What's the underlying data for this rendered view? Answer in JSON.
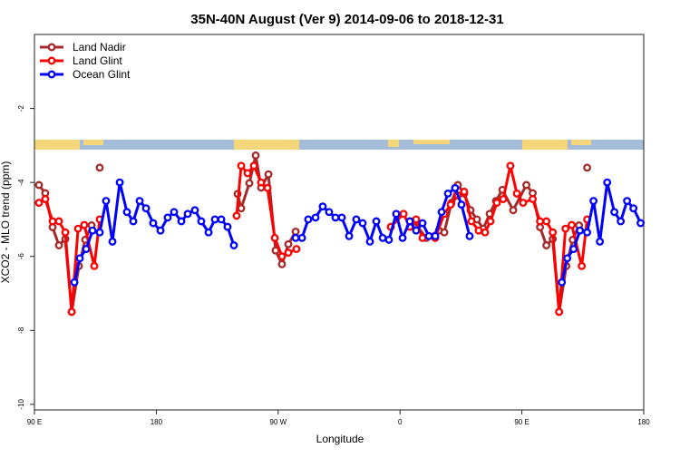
{
  "chart_data": {
    "type": "line",
    "title": "35N-40N August (Ver 9)   2014-09-06 to 2018-12-31",
    "x_label": "Longitude",
    "y_label": "XCO2 - MLO trend (ppm)",
    "legend": "upper left",
    "xlim": [
      90,
      540
    ],
    "ylim": [
      -10.15,
      0
    ],
    "xticks": [
      {
        "value": 90,
        "label": "90 E"
      },
      180,
      {
        "value": 270,
        "label": "90 W"
      },
      {
        "value": 360,
        "label": "0"
      },
      {
        "value": 450,
        "label": "90 E"
      },
      {
        "value": 540,
        "label": "180"
      }
    ],
    "yticks": [
      -10,
      -8,
      -6,
      -4,
      -2
    ],
    "series": [
      {
        "name": "Land Nadir",
        "color": "#a52a2a",
        "x": [
          93.3,
          98,
          103.4,
          108.1,
          112.8,
          117.5,
          122.8,
          127.5,
          132.2,
          135,
          138.2,
          190,
          240,
          242.7,
          248.7,
          253.4,
          257.4,
          262.8,
          268.1,
          272.8,
          277.5,
          282.9,
          330,
          369.9,
          379.3,
          388.7,
          392.7,
          398,
          402.7,
          407.4,
          412.1,
          416.8,
          421.5,
          426.2,
          430.9,
          435.6,
          443.6,
          453.3,
          458,
          463.4,
          468.1,
          472.8,
          477.5,
          482.8,
          487.5,
          492.2,
          495,
          498.2
        ],
        "values": [
          -4.07,
          -4.29,
          -5.21,
          -5.7,
          -5.53,
          -7.5,
          -6.26,
          -5.55,
          -5.16,
          null,
          -3.6,
          null,
          -4.31,
          -4.7,
          -4.02,
          -3.27,
          -4.14,
          -3.78,
          -5.84,
          -6.21,
          -5.67,
          -5.33,
          null,
          -5.05,
          -5.5,
          -5.3,
          -5.35,
          -4.55,
          -4.07,
          -4.3,
          -4.75,
          -5.0,
          -5.25,
          -4.85,
          -4.5,
          -4.2,
          -4.75,
          -4.07,
          -4.29,
          -5.21,
          -5.7,
          -5.53,
          -7.5,
          -6.26,
          -5.55,
          -5.16,
          null,
          -3.6
        ]
      },
      {
        "name": "Land Glint",
        "color": "#ff0000",
        "x": [
          93.3,
          98,
          103.4,
          108.1,
          112.8,
          117.5,
          122.2,
          126.8,
          134.2,
          138.2,
          190,
          239.3,
          242.7,
          247.4,
          252.1,
          257.4,
          262.1,
          267.5,
          272.8,
          277.5,
          283.5,
          320,
          353.2,
          362.6,
          367.2,
          371.9,
          376.6,
          386,
          392.7,
          397.4,
          402.7,
          407.4,
          412.7,
          418.1,
          422.8,
          426.8,
          431.5,
          436.2,
          441.5,
          446.3,
          450.9,
          458,
          463.4,
          468.1,
          472.8,
          477.5,
          482.2,
          486.8,
          494.2,
          498.2
        ],
        "values": [
          -4.55,
          -4.45,
          -5.05,
          -5.05,
          -5.35,
          -7.5,
          -5.25,
          -5.15,
          -6.26,
          -5.0,
          null,
          -4.9,
          -3.55,
          -3.75,
          -3.55,
          -4.0,
          -4.15,
          -5.5,
          -6.0,
          -5.9,
          -5.8,
          null,
          -5.2,
          -4.85,
          -5.2,
          -5.0,
          -5.5,
          -5.5,
          -4.85,
          -4.6,
          -4.35,
          -4.25,
          -5.05,
          -5.3,
          -5.35,
          -5.05,
          -4.55,
          -4.45,
          -3.55,
          -4.3,
          -4.55,
          -4.45,
          -5.05,
          -5.05,
          -5.35,
          -7.5,
          -5.25,
          -5.15,
          -6.26,
          -5.0
        ]
      },
      {
        "name": "Ocean Glint",
        "color": "#0000ff",
        "x": [
          119.5,
          123.5,
          128.2,
          132.9,
          138.2,
          142.9,
          147.6,
          153,
          158.3,
          163,
          167.7,
          172.4,
          177.7,
          183.1,
          188.4,
          193.1,
          198.5,
          203.2,
          208.5,
          213.2,
          218.6,
          223.3,
          228,
          232.6,
          237.3,
          260,
          282.9,
          287.6,
          292.2,
          297.6,
          302.9,
          307.6,
          312.3,
          317,
          322.4,
          327.7,
          332.4,
          337.8,
          342.5,
          347.2,
          351.8,
          357.2,
          361.9,
          367.2,
          371.9,
          376.6,
          381.3,
          386,
          390.7,
          395.4,
          400.7,
          405.4,
          411.4,
          440,
          479.5,
          483.5,
          488.2,
          492.9,
          498.2,
          502.9,
          507.6,
          513,
          518.3,
          523,
          527.7,
          532.4,
          537.7
        ],
        "values": [
          -6.7,
          -6.05,
          -5.8,
          -5.3,
          -5.35,
          -4.5,
          -5.6,
          -4.0,
          -4.8,
          -5.05,
          -4.5,
          -4.7,
          -5.1,
          -5.3,
          -4.95,
          -4.8,
          -5.05,
          -4.85,
          -4.75,
          -5.05,
          -5.35,
          -5.0,
          -5.0,
          -5.2,
          -5.7,
          null,
          -5.5,
          -5.5,
          -5.0,
          -4.95,
          -4.65,
          -4.8,
          -4.95,
          -4.95,
          -5.45,
          -5.0,
          -5.1,
          -5.6,
          -5.05,
          -5.5,
          -5.55,
          -4.85,
          -5.5,
          -5.05,
          -5.3,
          -5.1,
          -5.45,
          -5.45,
          -4.8,
          -4.3,
          -4.15,
          -4.6,
          -5.45,
          null,
          -6.7,
          -6.05,
          -5.8,
          -5.3,
          -5.35,
          -4.5,
          -5.6,
          -4.0,
          -4.8,
          -5.05,
          -4.5,
          -4.7,
          -5.1
        ]
      }
    ]
  }
}
